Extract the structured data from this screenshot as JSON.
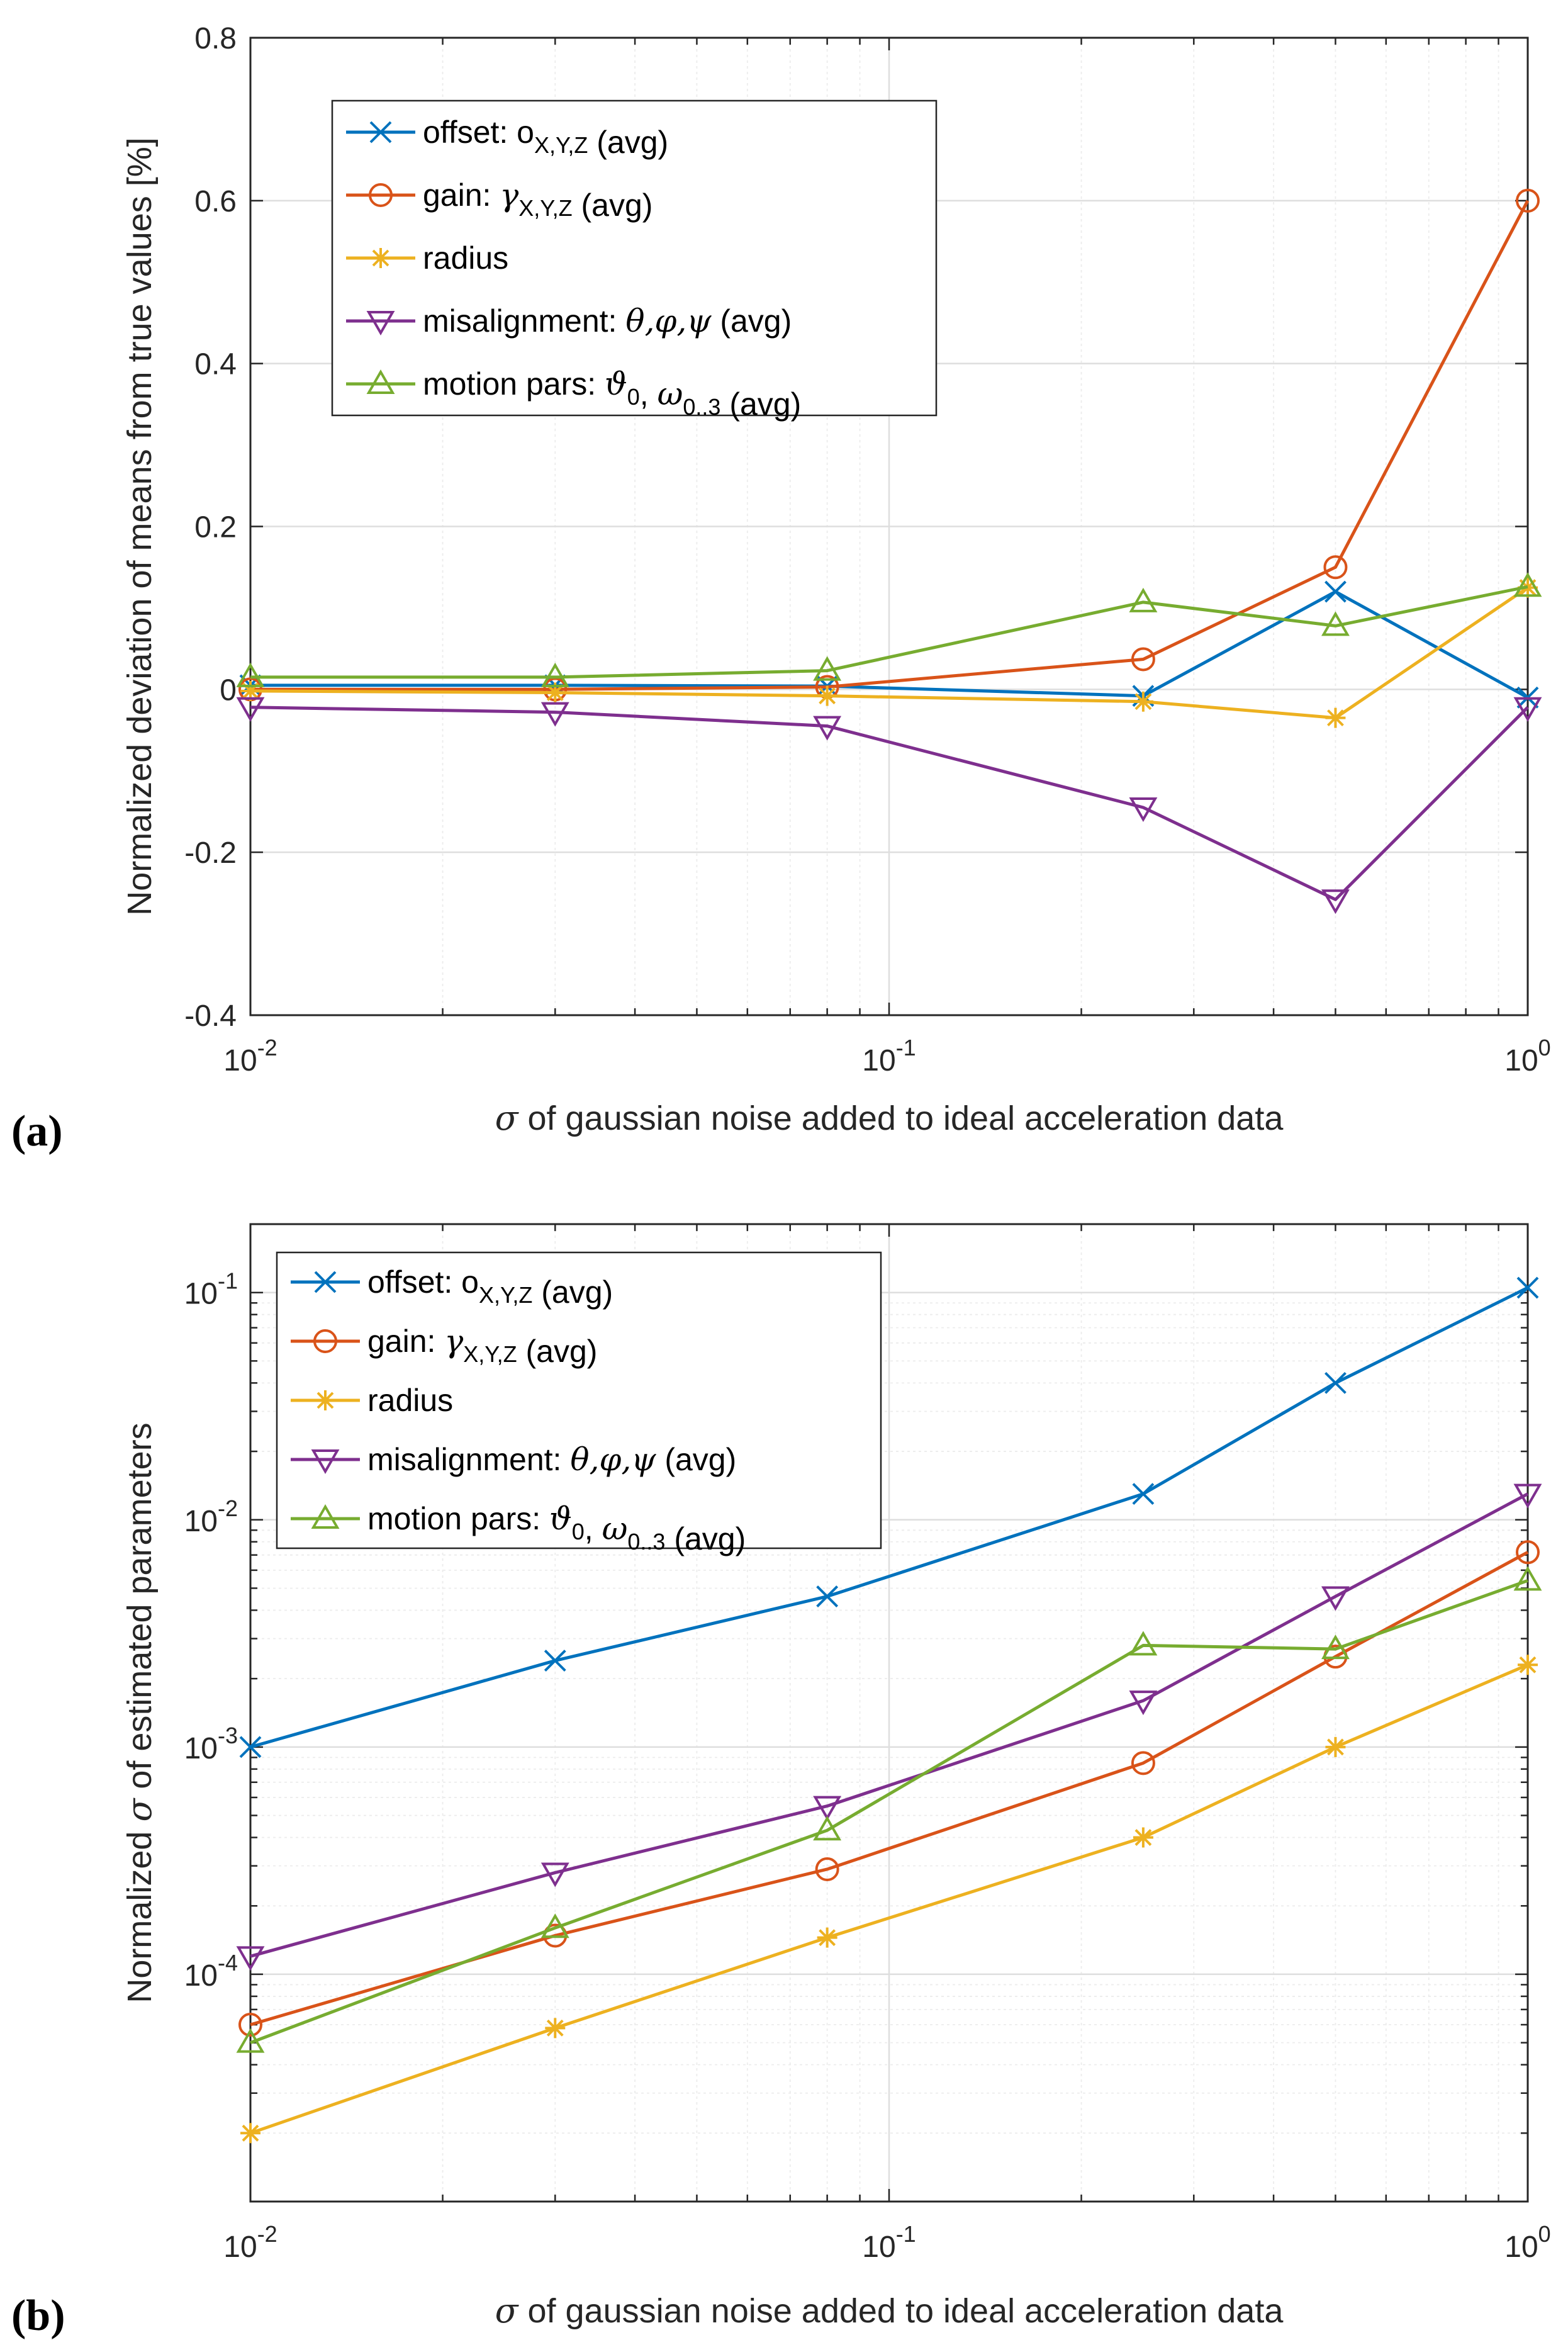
{
  "colors": {
    "offset": "#0072BD",
    "gain": "#D95319",
    "radius": "#EDB120",
    "misalignment": "#7E2F8E",
    "motion": "#77AC30",
    "axis": "#262626",
    "grid": "#e6e6e6"
  },
  "chart_data": [
    {
      "panel_label": "(a)",
      "type": "line",
      "xscale": "log",
      "yscale": "linear",
      "xlim": [
        0.01,
        1
      ],
      "ylim": [
        -0.4,
        0.8
      ],
      "xlabel_sym": "σ",
      "xlabel": " of gaussian noise added to ideal acceleration data",
      "ylabel": "Normalized deviation of means from true values [%]",
      "ylabel_prefix": "",
      "ylabel_sym": "",
      "ylabel_suffix": "",
      "x": [
        0.01,
        0.03,
        0.08,
        0.25,
        0.5,
        1.0
      ],
      "yticks": [
        -0.4,
        -0.2,
        0,
        0.2,
        0.4,
        0.6,
        0.8
      ],
      "ytick_labels": [
        "-0.4",
        "-0.2",
        "0",
        "0.2",
        "0.4",
        "0.6",
        "0.8"
      ],
      "xticks": [
        0.01,
        0.1,
        1
      ],
      "xtick_bases": [
        "10",
        "10",
        "10"
      ],
      "xtick_exps": [
        "-2",
        "-1",
        "0"
      ],
      "grid": true,
      "legend_position": "top-left",
      "series": [
        {
          "key": "offset",
          "marker": "x",
          "values": [
            0.005,
            0.005,
            0.004,
            -0.008,
            0.12,
            -0.01
          ],
          "legend": {
            "text": "offset: o",
            "sub": "X,Y,Z",
            "tail": "  (avg)"
          }
        },
        {
          "key": "gain",
          "marker": "o",
          "values": [
            0.0,
            0.0,
            0.003,
            0.037,
            0.15,
            0.6
          ],
          "legend": {
            "text": "gain: ",
            "sym": "γ",
            "sub": "X,Y,Z",
            "tail": "  (avg)"
          }
        },
        {
          "key": "radius",
          "marker": "*",
          "values": [
            -0.002,
            -0.004,
            -0.008,
            -0.015,
            -0.035,
            0.125
          ],
          "legend": {
            "text": "radius"
          }
        },
        {
          "key": "misalignment",
          "marker": "v",
          "values": [
            -0.022,
            -0.028,
            -0.045,
            -0.145,
            -0.258,
            -0.022
          ],
          "legend": {
            "text": "misalignment: ",
            "sym": "θ,φ,ψ",
            "tail": "  (avg)"
          }
        },
        {
          "key": "motion",
          "marker": "^",
          "values": [
            0.015,
            0.015,
            0.023,
            0.107,
            0.078,
            0.126
          ],
          "legend": {
            "text": " motion pars:  ",
            "sym": "ϑ",
            "sub": "0",
            "text2": ", ",
            "sym2": "ω",
            "sub2": "0..3",
            "tail": "  (avg)"
          }
        }
      ]
    },
    {
      "panel_label": "(b)",
      "type": "line",
      "xscale": "log",
      "yscale": "log",
      "xlim": [
        0.01,
        1
      ],
      "ylim": [
        1e-05,
        0.2
      ],
      "xlabel_sym": "σ",
      "xlabel": " of gaussian noise added to ideal acceleration data",
      "ylabel": "",
      "ylabel_prefix": "Normalized ",
      "ylabel_sym": "σ",
      "ylabel_suffix": " of estimated parameters",
      "x": [
        0.01,
        0.03,
        0.08,
        0.25,
        0.5,
        1.0
      ],
      "yticks": [
        0.0001,
        0.001,
        0.01,
        0.1
      ],
      "ytick_bases": [
        "10",
        "10",
        "10",
        "10"
      ],
      "ytick_exps": [
        "-4",
        "-3",
        "-2",
        "-1"
      ],
      "xticks": [
        0.01,
        0.1,
        1
      ],
      "xtick_bases": [
        "10",
        "10",
        "10"
      ],
      "xtick_exps": [
        "-2",
        "-1",
        "0"
      ],
      "grid": true,
      "legend_position": "top-left",
      "series": [
        {
          "key": "offset",
          "marker": "x",
          "values": [
            0.001,
            0.0024,
            0.0046,
            0.013,
            0.04,
            0.105
          ],
          "legend": {
            "text": "offset: o",
            "sub": "X,Y,Z",
            "tail": "  (avg)"
          }
        },
        {
          "key": "gain",
          "marker": "o",
          "values": [
            6e-05,
            0.000148,
            0.00029,
            0.00085,
            0.0025,
            0.0072
          ],
          "legend": {
            "text": "gain: ",
            "sym": "γ",
            "sub": "X,Y,Z",
            "tail": "  (avg)"
          }
        },
        {
          "key": "radius",
          "marker": "*",
          "values": [
            2e-05,
            5.8e-05,
            0.000145,
            0.0004,
            0.001,
            0.0023
          ],
          "legend": {
            "text": "radius"
          }
        },
        {
          "key": "misalignment",
          "marker": "v",
          "values": [
            0.00012,
            0.00028,
            0.00055,
            0.0016,
            0.0046,
            0.013
          ],
          "legend": {
            "text": "misalignment: ",
            "sym": "θ,φ,ψ",
            "tail": "  (avg)"
          }
        },
        {
          "key": "motion",
          "marker": "^",
          "values": [
            5e-05,
            0.00016,
            0.00043,
            0.0028,
            0.0027,
            0.0054
          ],
          "legend": {
            "text": " motion pars:  ",
            "sym": "ϑ",
            "sub": "0",
            "text2": ", ",
            "sym2": "ω",
            "sub2": "0..3",
            "tail": "  (avg)"
          }
        }
      ]
    }
  ]
}
